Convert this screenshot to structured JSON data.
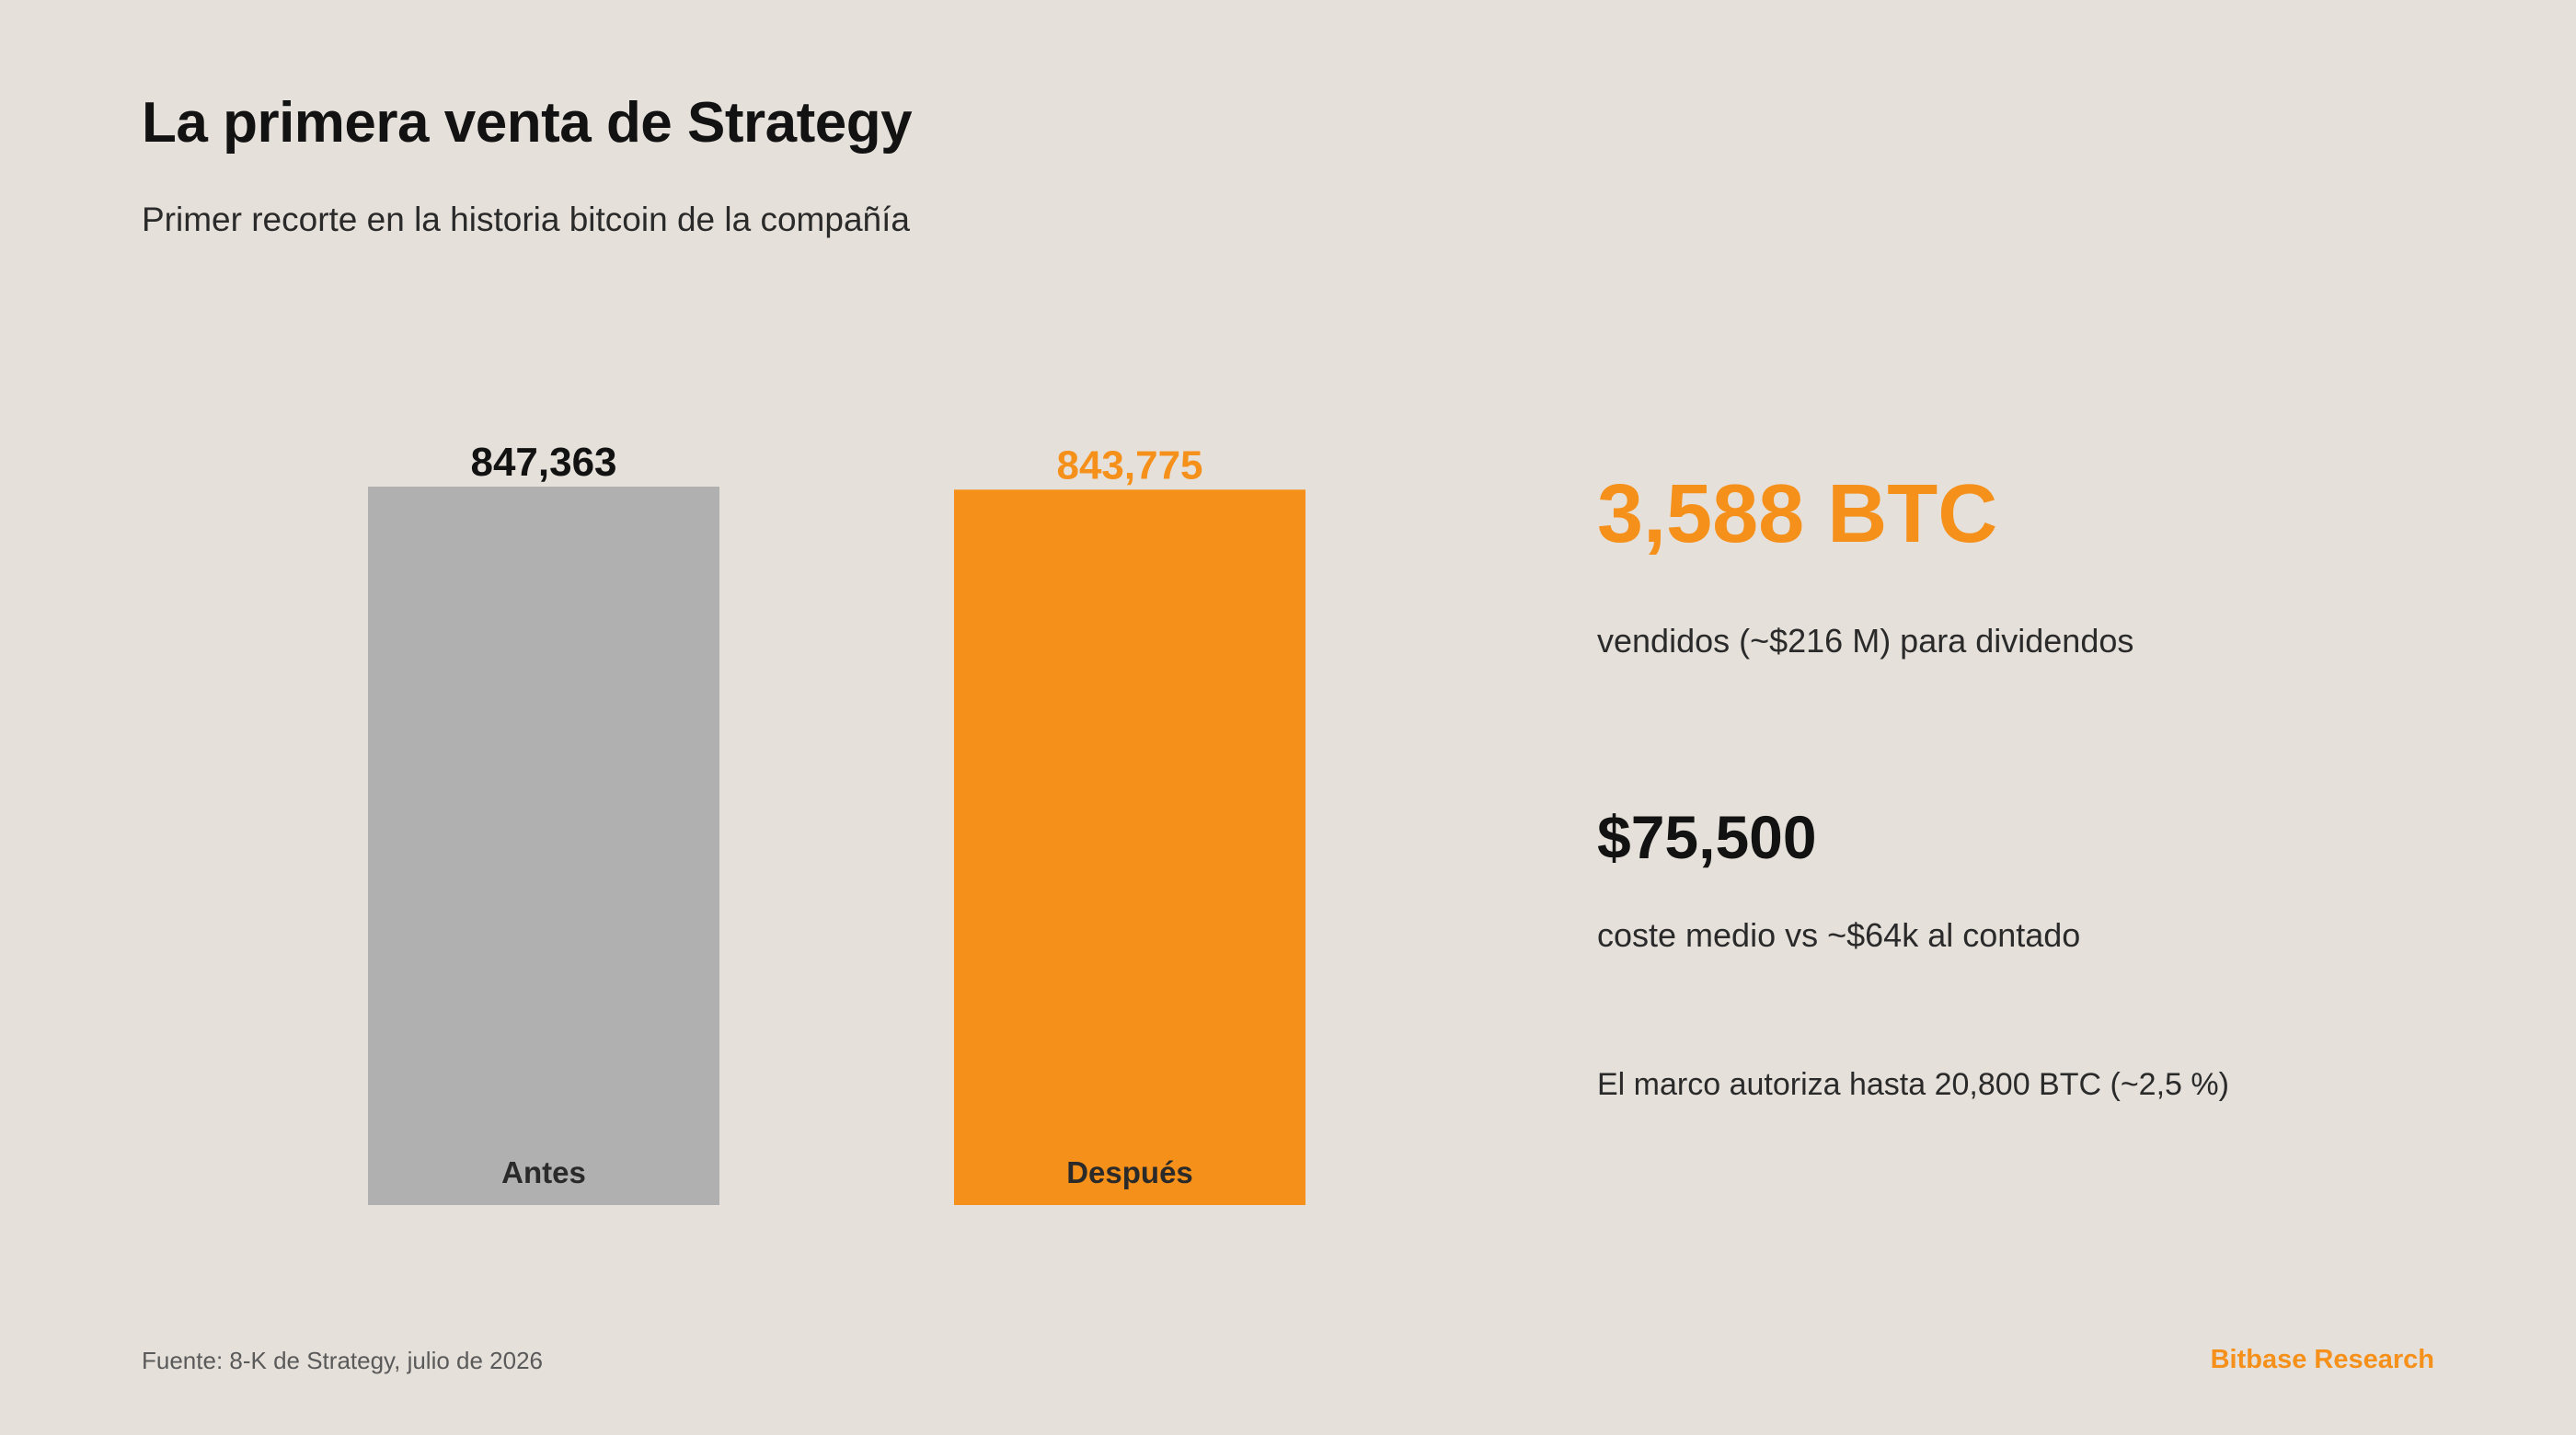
{
  "header": {
    "title": "La primera venta de Strategy",
    "subtitle": "Primer recorte en la historia bitcoin de la compañía"
  },
  "chart_data": {
    "type": "bar",
    "categories": [
      "Antes",
      "Después"
    ],
    "values": [
      847363,
      843775
    ],
    "value_labels": [
      "847,363",
      "843,775"
    ],
    "colors": [
      "#b0b0b0",
      "#f5901a"
    ],
    "value_label_colors": [
      "#121212",
      "#f5901a"
    ],
    "title": "",
    "xlabel": "",
    "ylabel": "",
    "grid": false
  },
  "stats": {
    "sold_value": "3,588 BTC",
    "sold_desc": "vendidos (~$216 M) para dividendos",
    "cost_value": "$75,500",
    "cost_desc": "coste medio vs ~$64k al contado",
    "note": "El marco autoriza hasta 20,800 BTC (~2,5 %)"
  },
  "footer": {
    "source": "Fuente: 8-K de Strategy, julio de 2026",
    "brand": "Bitbase Research"
  }
}
